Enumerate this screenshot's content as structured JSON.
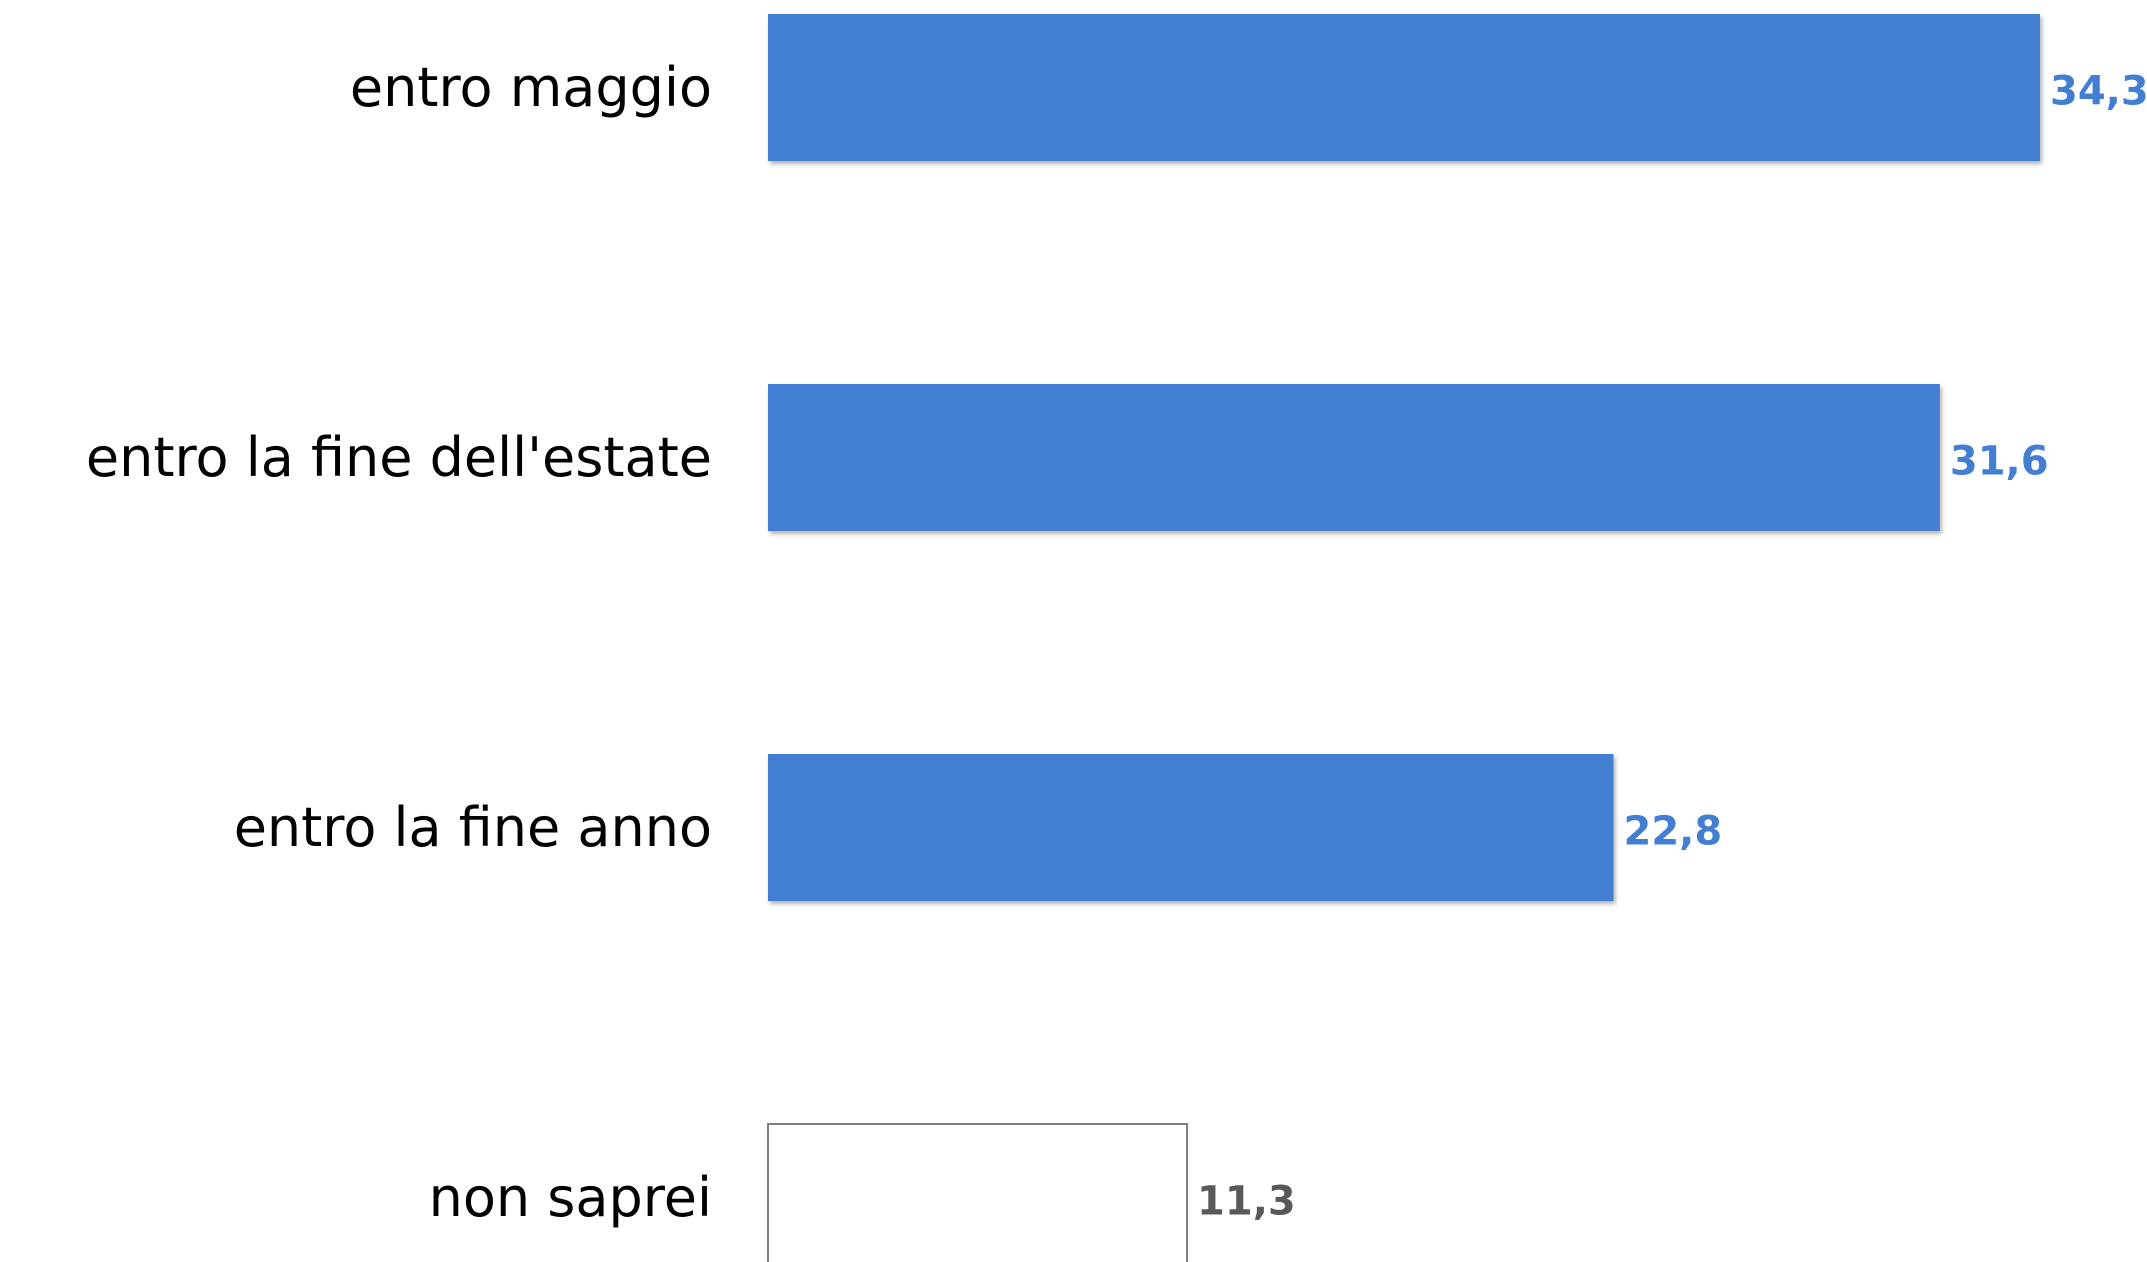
{
  "chart_data": {
    "type": "bar",
    "orientation": "horizontal",
    "categories": [
      "entro maggio",
      "entro la fine dell'estate",
      "entro la fine anno",
      "non saprei"
    ],
    "values": [
      34.3,
      31.6,
      22.8,
      11.3
    ],
    "value_labels": [
      "34,3",
      "31,6",
      "22,8",
      "11,3"
    ],
    "bar_styles": [
      "filled",
      "filled",
      "filled",
      "outline"
    ],
    "title": "",
    "xlabel": "",
    "ylabel": "",
    "xlim": [
      0,
      34.3
    ],
    "grid": false,
    "legend": "none",
    "colors": {
      "bar_fill": "#427ED1",
      "bar_outline": "#7F7F7F",
      "value_label_filled": "#427ED1",
      "value_label_outline": "#595959",
      "category_label": "#000000"
    }
  }
}
